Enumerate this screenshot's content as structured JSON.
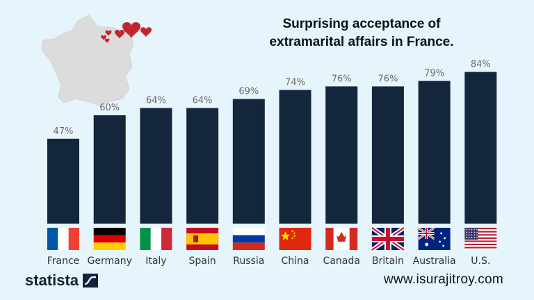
{
  "chart_data": {
    "type": "bar",
    "title": "Surprising acceptance of extramarital affairs in France.",
    "title_lines": [
      "Surprising acceptance of",
      "extramarital affairs in France."
    ],
    "categories": [
      "France",
      "Germany",
      "Italy",
      "Spain",
      "Russia",
      "China",
      "Canada",
      "Britain",
      "Australia",
      "U.S."
    ],
    "values": [
      47,
      60,
      64,
      64,
      69,
      74,
      76,
      76,
      79,
      84
    ],
    "value_labels": [
      "47%",
      "60%",
      "64%",
      "64%",
      "69%",
      "74%",
      "76%",
      "76%",
      "79%",
      "84%"
    ],
    "ylim": [
      0,
      100
    ],
    "grid": false,
    "xlabel": "",
    "ylabel": ""
  },
  "flags": [
    "france-flag-icon",
    "germany-flag-icon",
    "italy-flag-icon",
    "spain-flag-icon",
    "russia-flag-icon",
    "china-flag-icon",
    "canada-flag-icon",
    "britain-flag-icon",
    "australia-flag-icon",
    "us-flag-icon"
  ],
  "decor": {
    "map_icon": "france-map-icon",
    "hearts_icon": "hearts-icon"
  },
  "colors": {
    "bar": "#13263b",
    "background": "#e6f4fb",
    "value_label": "#6b6b6b",
    "category_label": "#333333",
    "map": "#dcdcdc",
    "heart": "#c0272d"
  },
  "footer": {
    "source": "statista",
    "website": "www.isurajitroy.com"
  }
}
